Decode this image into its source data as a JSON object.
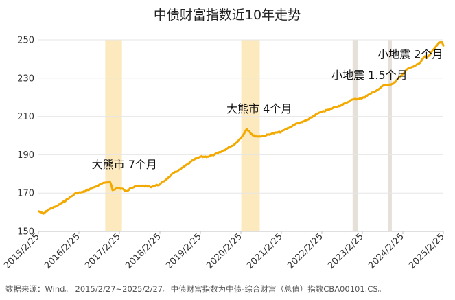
{
  "chart_data": {
    "type": "line",
    "title": "中债财富指数近10年走势",
    "source_note": "数据来源：Wind。 2015/2/27~2025/2/27。中债财富指数为中债-综合财富（总值）指数CBA00101.CS。",
    "x_ticks": [
      "2015/2/25",
      "2016/2/25",
      "2017/2/25",
      "2018/2/25",
      "2019/2/25",
      "2020/2/25",
      "2021/2/25",
      "2022/2/25",
      "2023/2/25",
      "2024/2/25",
      "2025/2/25"
    ],
    "y_ticks": [
      150,
      170,
      190,
      210,
      230,
      250
    ],
    "ylim": [
      150,
      250
    ],
    "xlim": [
      "2015-02-25",
      "2025-02-27"
    ],
    "grid": true,
    "series": [
      {
        "color": "#F2A900",
        "points": [
          [
            "2015-02-27",
            160.5
          ],
          [
            "2015-04-10",
            159.2
          ],
          [
            "2015-06-01",
            161.5
          ],
          [
            "2015-08-01",
            163.0
          ],
          [
            "2015-10-01",
            165.0
          ],
          [
            "2015-12-01",
            167.5
          ],
          [
            "2016-02-01",
            170.0
          ],
          [
            "2016-04-01",
            170.5
          ],
          [
            "2016-06-01",
            172.0
          ],
          [
            "2016-08-01",
            173.5
          ],
          [
            "2016-10-20",
            175.5
          ],
          [
            "2016-12-01",
            176.0
          ],
          [
            "2016-12-15",
            174.0
          ],
          [
            "2016-12-25",
            171.5
          ],
          [
            "2017-02-01",
            172.5
          ],
          [
            "2017-03-15",
            172.3
          ],
          [
            "2017-05-01",
            171.0
          ],
          [
            "2017-06-01",
            172.5
          ],
          [
            "2017-08-01",
            173.5
          ],
          [
            "2017-10-01",
            173.8
          ],
          [
            "2017-12-01",
            173.2
          ],
          [
            "2018-02-25",
            174.5
          ],
          [
            "2018-05-01",
            177.5
          ],
          [
            "2018-07-01",
            180.5
          ],
          [
            "2018-09-01",
            182.5
          ],
          [
            "2018-11-01",
            185.0
          ],
          [
            "2019-01-01",
            187.5
          ],
          [
            "2019-03-01",
            189.0
          ],
          [
            "2019-05-01",
            189.0
          ],
          [
            "2019-07-01",
            190.0
          ],
          [
            "2019-09-01",
            191.5
          ],
          [
            "2019-11-01",
            193.5
          ],
          [
            "2020-01-01",
            195.5
          ],
          [
            "2020-03-01",
            199.0
          ],
          [
            "2020-04-20",
            203.5
          ],
          [
            "2020-05-15",
            202.0
          ],
          [
            "2020-06-15",
            200.0
          ],
          [
            "2020-08-01",
            199.5
          ],
          [
            "2020-10-01",
            200.0
          ],
          [
            "2020-12-01",
            201.0
          ],
          [
            "2021-02-25",
            202.0
          ],
          [
            "2021-05-01",
            204.0
          ],
          [
            "2021-07-01",
            206.0
          ],
          [
            "2021-09-01",
            207.0
          ],
          [
            "2021-11-01",
            208.5
          ],
          [
            "2022-01-01",
            211.0
          ],
          [
            "2022-03-01",
            212.5
          ],
          [
            "2022-05-01",
            213.5
          ],
          [
            "2022-07-01",
            215.0
          ],
          [
            "2022-09-01",
            216.0
          ],
          [
            "2022-11-15",
            218.5
          ],
          [
            "2022-12-15",
            219.0
          ],
          [
            "2023-02-25",
            219.5
          ],
          [
            "2023-04-01",
            220.5
          ],
          [
            "2023-06-01",
            222.5
          ],
          [
            "2023-08-01",
            224.5
          ],
          [
            "2023-09-15",
            226.5
          ],
          [
            "2023-10-15",
            226.5
          ],
          [
            "2023-12-01",
            227.0
          ],
          [
            "2024-02-25",
            232.0
          ],
          [
            "2024-04-01",
            234.5
          ],
          [
            "2024-06-01",
            236.0
          ],
          [
            "2024-08-01",
            238.0
          ],
          [
            "2024-09-15",
            241.5
          ],
          [
            "2024-10-01",
            240.5
          ],
          [
            "2024-11-01",
            242.5
          ],
          [
            "2024-12-15",
            246.0
          ],
          [
            "2025-01-15",
            248.5
          ],
          [
            "2025-02-10",
            249.0
          ],
          [
            "2025-02-27",
            247.0
          ]
        ]
      }
    ],
    "shaded_periods": [
      {
        "start": "2016-10-20",
        "end": "2017-03-20",
        "color": "#FDE9BE"
      },
      {
        "start": "2020-03-01",
        "end": "2020-08-15",
        "color": "#FDE9BE"
      },
      {
        "start": "2022-12-01",
        "end": "2023-01-15",
        "color": "#E6E1D8"
      },
      {
        "start": "2023-10-15",
        "end": "2023-11-20",
        "color": "#E6E1D8"
      }
    ],
    "annotations": [
      {
        "text": "大熊市 7个月",
        "date": "2016-06-20",
        "value": 183.0
      },
      {
        "text": "大熊市 4个月",
        "date": "2019-10-20",
        "value": 212.0
      },
      {
        "text": "小地震 1.5个月",
        "date": "2022-05-25",
        "value": 229.5
      },
      {
        "text": "小地震 2个月",
        "date": "2023-07-15",
        "value": 240.5
      }
    ]
  }
}
